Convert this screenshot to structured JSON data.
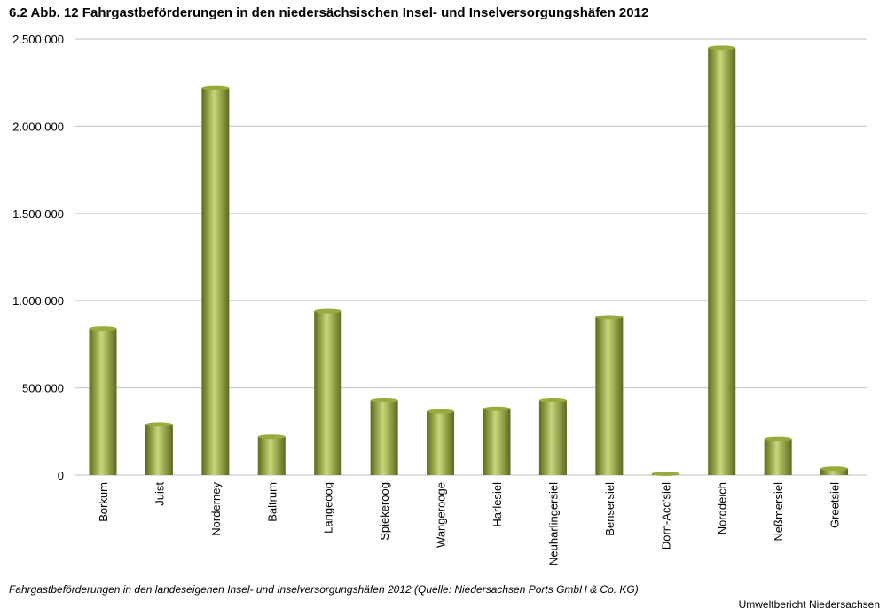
{
  "title": "6.2 Abb. 12 Fahrgastbeförderungen in den niedersächsischen Insel- und Inselversorgungshäfen 2012",
  "caption": "Fahrgastbeförderungen in den landeseigenen Insel- und Inselversorgungshäfen 2012 (Quelle: Niedersachsen Ports GmbH & Co. KG)",
  "credit": "Umweltbericht Niedersachsen",
  "colors": {
    "bar_light": "#c9d67a",
    "bar_mid": "#9aab3e",
    "bar_dark": "#5c6a1c",
    "grid": "#c8d0d0"
  },
  "chart_data": {
    "type": "bar",
    "title": "6.2 Abb. 12 Fahrgastbeförderungen in den niedersächsischen Insel- und Inselversorgungshäfen 2012",
    "xlabel": "",
    "ylabel": "",
    "ylim": [
      0,
      2500000
    ],
    "yticks": [
      0,
      500000,
      1000000,
      1500000,
      2000000,
      2500000
    ],
    "ytick_labels": [
      "0",
      "500.000",
      "1.000.000",
      "1.500.000",
      "2.000.000",
      "2.500.000"
    ],
    "grid": true,
    "legend": "none",
    "categories": [
      "Borkum",
      "Juist",
      "Norderney",
      "Baltrum",
      "Langeoog",
      "Spiekeroog",
      "Wangerooge",
      "Harlesiel",
      "Neuharlingersiel",
      "Bensersiel",
      "Dorn-Acc'siel",
      "Norddeich",
      "Neßmersiel",
      "Greetsiel"
    ],
    "values": [
      840000,
      290000,
      2220000,
      220000,
      940000,
      430000,
      365000,
      380000,
      430000,
      905000,
      5000,
      2450000,
      208000,
      37000
    ]
  }
}
